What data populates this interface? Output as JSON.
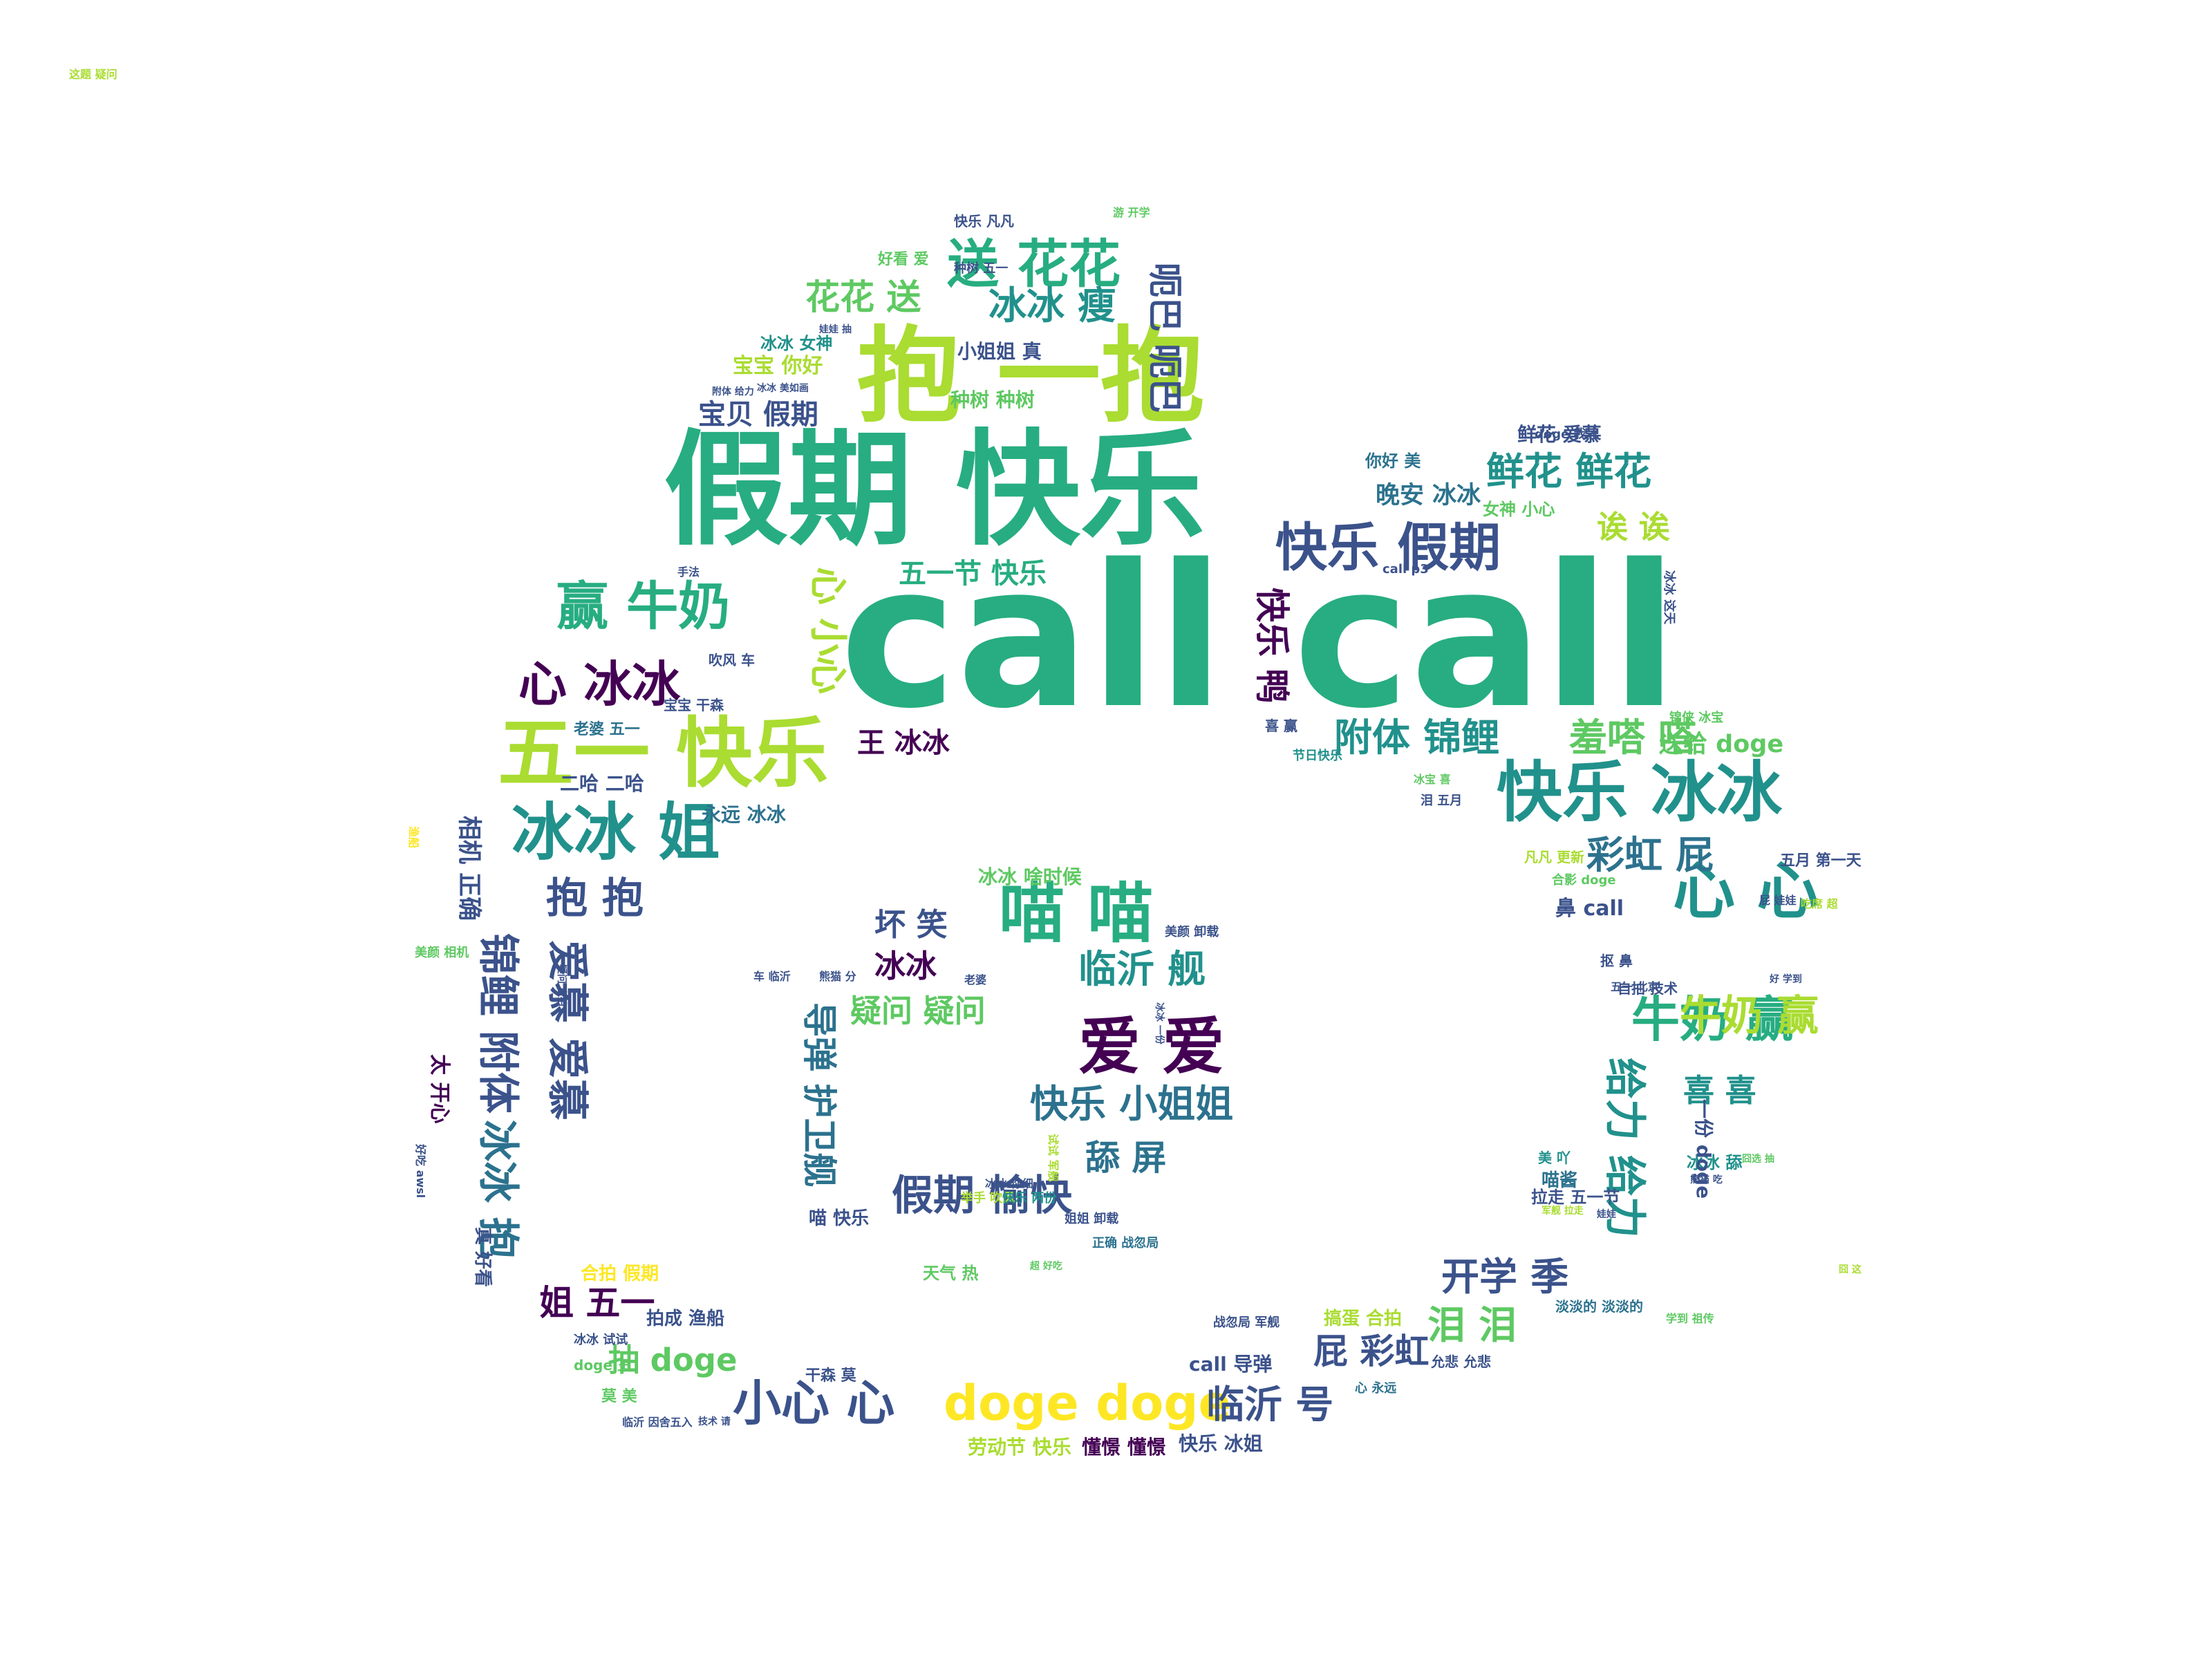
{
  "palette": {
    "dark_purple": "#440154",
    "indigo": "#3b528b",
    "steel_blue": "#2c728e",
    "teal": "#21918c",
    "sea_green": "#27ad81",
    "green": "#5ec962",
    "lime": "#aadc32",
    "yellow": "#fde725"
  },
  "words": [
    {
      "text": "call call",
      "color": "sea_green"
    },
    {
      "text": "假期 快乐",
      "color": "sea_green"
    },
    {
      "text": "抱 一抱",
      "color": "lime"
    },
    {
      "text": "五一 快乐",
      "color": "lime"
    },
    {
      "text": "快乐 冰冰",
      "color": "teal"
    },
    {
      "text": "快乐 假期",
      "color": "indigo"
    },
    {
      "text": "送 花花",
      "color": "sea_green"
    },
    {
      "text": "冰冰 姐",
      "color": "teal"
    },
    {
      "text": "喵 喵",
      "color": "sea_green"
    },
    {
      "text": "心 心",
      "color": "teal"
    },
    {
      "text": "爱 爱",
      "color": "dark_purple"
    },
    {
      "text": "牛奶 赢",
      "color": "sea_green"
    },
    {
      "text": "赢 牛奶",
      "color": "sea_green"
    },
    {
      "text": "心 冰冰",
      "color": "dark_purple"
    },
    {
      "text": "小心 心",
      "color": "indigo"
    },
    {
      "text": "doge doge",
      "color": "yellow"
    },
    {
      "text": "鲜花 鲜花",
      "color": "teal"
    },
    {
      "text": "附体 锦鲤",
      "color": "teal"
    },
    {
      "text": "羞嗒 嗒",
      "color": "green"
    },
    {
      "text": "彩虹 屁",
      "color": "steel_blue"
    },
    {
      "text": "临沂 舰",
      "color": "teal"
    },
    {
      "text": "快乐 小姐姐",
      "color": "steel_blue"
    },
    {
      "text": "假期 愉快",
      "color": "indigo"
    },
    {
      "text": "开学 季",
      "color": "indigo"
    },
    {
      "text": "临沂 号",
      "color": "indigo"
    },
    {
      "text": "花花 送",
      "color": "green"
    },
    {
      "text": "冰冰 瘦",
      "color": "teal"
    },
    {
      "text": "呃巴 呃巴",
      "color": "indigo"
    },
    {
      "text": "抱 抱",
      "color": "indigo"
    },
    {
      "text": "锦鲤 附体",
      "color": "indigo"
    },
    {
      "text": "爱慕 爱慕",
      "color": "indigo"
    },
    {
      "text": "冰冰 抱",
      "color": "steel_blue"
    },
    {
      "text": "给力 给力",
      "color": "teal"
    },
    {
      "text": "导弹 护卫舰",
      "color": "steel_blue"
    },
    {
      "text": "舔 屏",
      "color": "steel_blue"
    },
    {
      "text": "坏 笑",
      "color": "indigo"
    },
    {
      "text": "疑问 疑问",
      "color": "green"
    },
    {
      "text": "冰冰",
      "color": "dark_purple"
    },
    {
      "text": "心 小心",
      "color": "lime"
    },
    {
      "text": "快乐 鸭",
      "color": "dark_purple"
    },
    {
      "text": "五一节 快乐",
      "color": "sea_green"
    },
    {
      "text": "宝贝 假期",
      "color": "indigo"
    },
    {
      "text": "王 冰冰",
      "color": "dark_purple"
    },
    {
      "text": "诶 诶",
      "color": "lime"
    },
    {
      "text": "喜 喜",
      "color": "teal"
    },
    {
      "text": "牛奶 赢",
      "color": "lime"
    },
    {
      "text": "泪 泪",
      "color": "green"
    },
    {
      "text": "屁 彩虹",
      "color": "indigo"
    },
    {
      "text": "姐 五一",
      "color": "dark_purple"
    },
    {
      "text": "抽 doge",
      "color": "green"
    },
    {
      "text": "晚安 冰冰",
      "color": "steel_blue"
    },
    {
      "text": "送给 doge",
      "color": "green"
    },
    {
      "text": "冰冰 啥时候",
      "color": "green"
    },
    {
      "text": "种树 种树",
      "color": "green"
    },
    {
      "text": "小姐姐 真",
      "color": "indigo"
    },
    {
      "text": "宝宝 你好",
      "color": "lime"
    },
    {
      "text": "快乐 冰姐",
      "color": "indigo"
    },
    {
      "text": "劳动节 快乐",
      "color": "lime"
    },
    {
      "text": "懂憬 懂憬",
      "color": "dark_purple"
    },
    {
      "text": "call 导弹",
      "color": "indigo"
    },
    {
      "text": "搞蛋 合拍",
      "color": "lime"
    },
    {
      "text": "二哈 二哈",
      "color": "indigo"
    },
    {
      "text": "永远 冰冰",
      "color": "steel_blue"
    },
    {
      "text": "鲜花 爱慕",
      "color": "indigo"
    },
    {
      "text": "你好 美",
      "color": "steel_blue"
    },
    {
      "text": "女神 小心",
      "color": "green"
    },
    {
      "text": "冰冰 女神",
      "color": "teal"
    },
    {
      "text": "好看 爱",
      "color": "green"
    },
    {
      "text": "快乐 凡凡",
      "color": "indigo"
    },
    {
      "text": "喵 快乐",
      "color": "indigo"
    },
    {
      "text": "天气 热",
      "color": "green"
    },
    {
      "text": "合拍 假期",
      "color": "yellow"
    },
    {
      "text": "真 好看",
      "color": "indigo"
    },
    {
      "text": "太 开心",
      "color": "dark_purple"
    },
    {
      "text": "老婆 五一",
      "color": "steel_blue"
    },
    {
      "text": "宝宝 干森",
      "color": "indigo"
    },
    {
      "text": "吹风 车",
      "color": "indigo"
    },
    {
      "text": "拍成 渔船",
      "color": "indigo"
    },
    {
      "text": "莫 美",
      "color": "green"
    },
    {
      "text": "干森 莫",
      "color": "indigo"
    },
    {
      "text": "doge 王",
      "color": "green"
    },
    {
      "text": "冰冰 试试",
      "color": "indigo"
    },
    {
      "text": "凡凡 更新",
      "color": "lime"
    },
    {
      "text": "五月 第一天",
      "color": "indigo"
    },
    {
      "text": "鼻 call",
      "color": "indigo"
    },
    {
      "text": "喵酱",
      "color": "steel_blue"
    },
    {
      "text": "美 吖",
      "color": "teal"
    },
    {
      "text": "拉走 五一节",
      "color": "indigo"
    },
    {
      "text": "冰冰 舔",
      "color": "teal"
    },
    {
      "text": "抠 鼻",
      "color": "indigo"
    },
    {
      "text": "自拍 技术",
      "color": "indigo"
    },
    {
      "text": "淡淡的 淡淡的",
      "color": "steel_blue"
    },
    {
      "text": "允悲 允悲",
      "color": "indigo"
    },
    {
      "text": "心 永远",
      "color": "steel_blue"
    },
    {
      "text": "战忽局 军舰",
      "color": "indigo"
    },
    {
      "text": "试试 军舰",
      "color": "lime"
    },
    {
      "text": "临沂 因舍五入",
      "color": "indigo"
    },
    {
      "text": "doge 我冰",
      "color": "indigo"
    },
    {
      "text": "call p3",
      "color": "indigo"
    },
    {
      "text": "举手 吹风",
      "color": "lime"
    },
    {
      "text": "快乐 两份",
      "color": "teal"
    },
    {
      "text": "姐姐 卸载",
      "color": "indigo"
    },
    {
      "text": "正确 战忽局",
      "color": "steel_blue"
    },
    {
      "text": "超 好吃",
      "color": "green"
    },
    {
      "text": "冰冰 你细",
      "color": "indigo"
    },
    {
      "text": "老婆",
      "color": "indigo"
    },
    {
      "text": "美颜 卸载",
      "color": "indigo"
    },
    {
      "text": "熊猫 分",
      "color": "indigo"
    },
    {
      "text": "屁 娃娃",
      "color": "indigo"
    },
    {
      "text": "吃席 超",
      "color": "lime"
    },
    {
      "text": "合影 doge",
      "color": "green"
    },
    {
      "text": "相机 正确",
      "color": "indigo"
    },
    {
      "text": "渔船",
      "color": "yellow"
    },
    {
      "text": "好吃 awsl",
      "color": "indigo"
    },
    {
      "text": "美颜 相机",
      "color": "green"
    },
    {
      "text": "游 开学",
      "color": "green"
    },
    {
      "text": "种树 五一",
      "color": "indigo"
    },
    {
      "text": "娃娃 抽",
      "color": "indigo"
    },
    {
      "text": "附体 给力",
      "color": "indigo"
    },
    {
      "text": "冰冰 美如画",
      "color": "indigo"
    },
    {
      "text": "冰冰 这天",
      "color": "indigo"
    },
    {
      "text": "五一 北京",
      "color": "indigo"
    },
    {
      "text": "一份 doge",
      "color": "indigo"
    },
    {
      "text": "节日快乐",
      "color": "teal"
    },
    {
      "text": "喜 赢",
      "color": "indigo"
    },
    {
      "text": "泪 五月",
      "color": "indigo"
    },
    {
      "text": "锦侠 冰宝",
      "color": "green"
    },
    {
      "text": "冰宝 喜",
      "color": "green"
    },
    {
      "text": "军舰 拉走",
      "color": "lime"
    },
    {
      "text": "学到 祖传",
      "color": "green"
    },
    {
      "text": "车 临沂",
      "color": "indigo"
    },
    {
      "text": "娃娃",
      "color": "indigo"
    },
    {
      "text": "手法",
      "color": "indigo"
    },
    {
      "text": "技术 请",
      "color": "indigo"
    },
    {
      "text": "囧 这",
      "color": "lime"
    },
    {
      "text": "好 学到",
      "color": "indigo"
    },
    {
      "text": "疑问 自拍",
      "color": "indigo"
    },
    {
      "text": "冰冰 一份",
      "color": "indigo"
    },
    {
      "text": "熊猫 吃",
      "color": "indigo"
    },
    {
      "text": "囧选 抽",
      "color": "green"
    },
    {
      "text": "这题 疑问",
      "color": "lime"
    }
  ]
}
